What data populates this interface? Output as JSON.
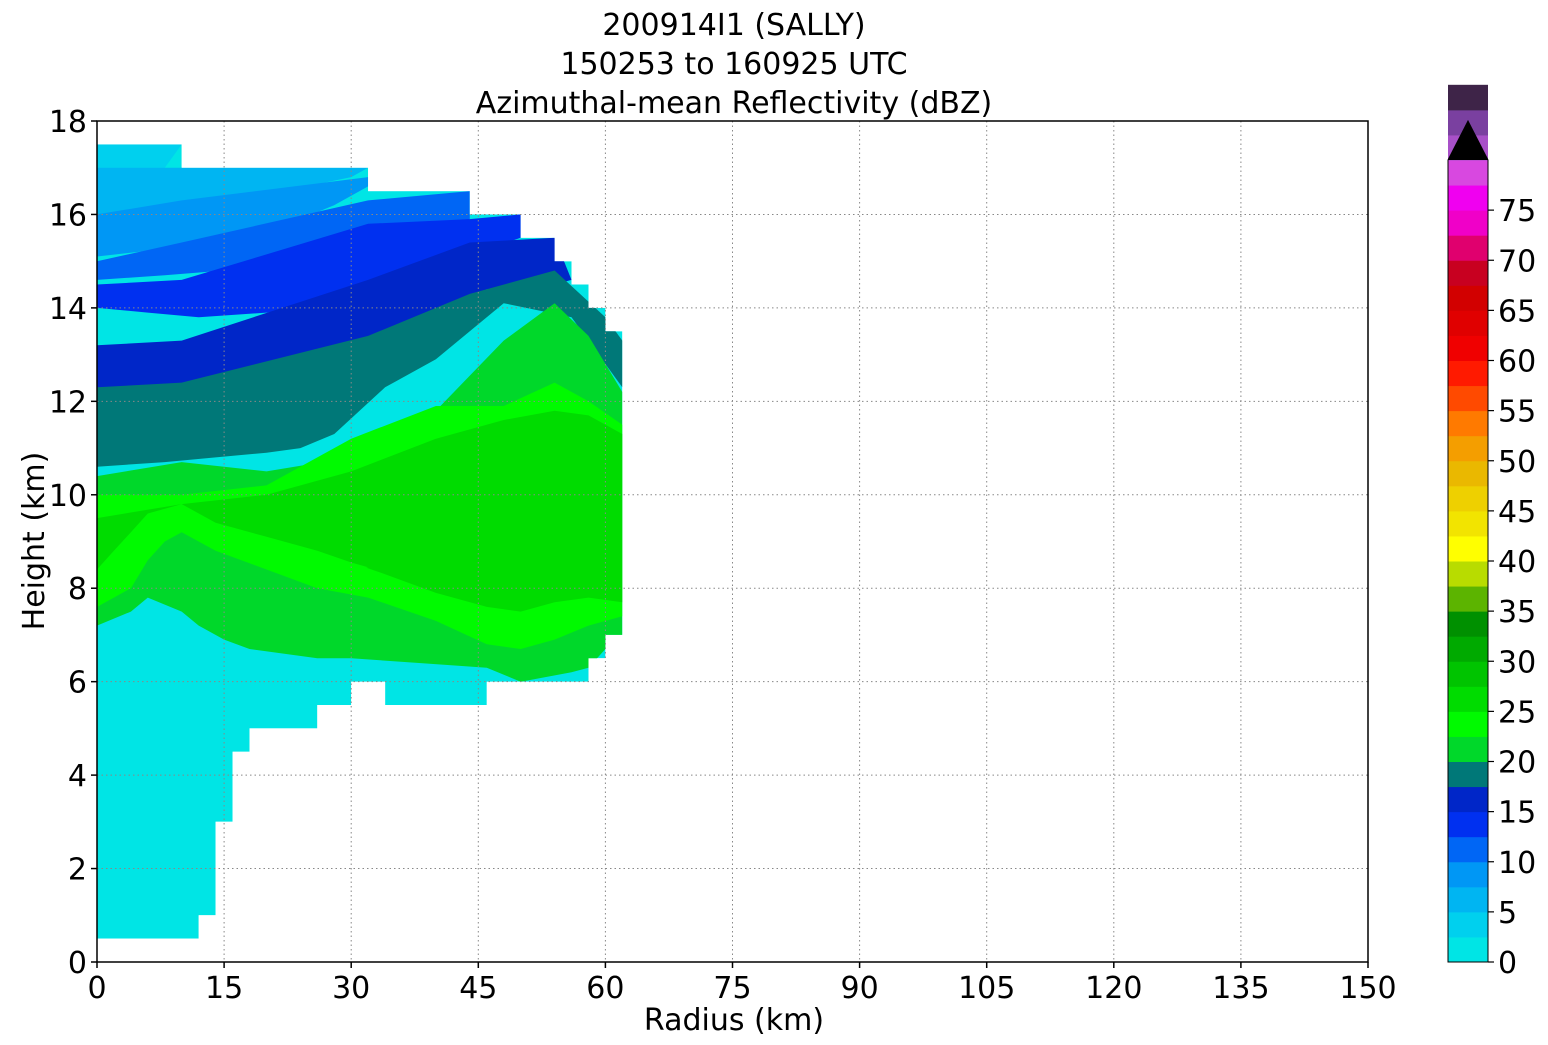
{
  "chart_data": {
    "type": "heatmap",
    "title_lines": [
      "200914I1 (SALLY)",
      "150253 to 160925 UTC",
      "Azimuthal-mean Reflectivity (dBZ)"
    ],
    "xlabel": "Radius (km)",
    "ylabel": "Height (km)",
    "xlim": [
      0,
      150
    ],
    "ylim": [
      0,
      18
    ],
    "xticks": [
      0,
      15,
      30,
      45,
      60,
      75,
      90,
      105,
      120,
      135,
      150
    ],
    "yticks": [
      0,
      2,
      4,
      6,
      8,
      10,
      12,
      14,
      16,
      18
    ],
    "grid": true,
    "colorbar": {
      "min": 0,
      "max": 80,
      "step": 2.5,
      "extend": "max",
      "extend_color": "#000000",
      "ticks": [
        0,
        5,
        10,
        15,
        20,
        25,
        30,
        35,
        40,
        45,
        50,
        55,
        60,
        65,
        70,
        75
      ],
      "colors": [
        "#00e5e5",
        "#00d0ee",
        "#00b5f2",
        "#0097f5",
        "#0066f5",
        "#0030f0",
        "#0026c8",
        "#007878",
        "#00d82a",
        "#00fa00",
        "#00dc00",
        "#00c400",
        "#00aa00",
        "#009000",
        "#5cb400",
        "#b8dc00",
        "#ffff00",
        "#f2e400",
        "#eed000",
        "#eab800",
        "#f49e00",
        "#ff7a00",
        "#ff4a00",
        "#ff1a00",
        "#f00000",
        "#e00000",
        "#d20000",
        "#c80020",
        "#e0006e",
        "#f000c8",
        "#f000f0",
        "#d848e0",
        "#a850c8",
        "#7a40a0",
        "#3e2448"
      ]
    },
    "data_envelope": {
      "radius_km": [
        0,
        10,
        10,
        32,
        32,
        44,
        44,
        50,
        50,
        54,
        54,
        56,
        56,
        58,
        58,
        60,
        60,
        62,
        62,
        60,
        60,
        58,
        58,
        46,
        46,
        34,
        34,
        30,
        30,
        26,
        26,
        18,
        18,
        16,
        16,
        14,
        14,
        12,
        12,
        0
      ],
      "height_km": [
        17.5,
        17.5,
        17,
        17,
        16.5,
        16.5,
        16,
        16,
        15.5,
        15.5,
        15,
        15,
        14.5,
        14.5,
        14,
        14,
        13.5,
        13.5,
        7,
        7,
        6.5,
        6.5,
        6,
        6,
        5.5,
        5.5,
        6,
        6,
        5.5,
        5.5,
        5,
        5,
        4.5,
        4.5,
        3,
        3,
        1,
        1,
        0.5,
        0.5
      ]
    },
    "dbz_contours": [
      {
        "dbz": 2.5,
        "radius_km": [
          0,
          10,
          8,
          4,
          0
        ],
        "height_km": [
          17.5,
          17.5,
          17,
          16.8,
          16.8
        ]
      },
      {
        "dbz": 5,
        "radius_km": [
          0,
          10,
          32,
          30,
          22,
          14,
          8,
          0
        ],
        "height_km": [
          17.0,
          17.0,
          17.0,
          16.8,
          16.5,
          16.2,
          16.0,
          15.9
        ]
      },
      {
        "dbz": 7.5,
        "radius_km": [
          0,
          10,
          32,
          32,
          28,
          20,
          10,
          0
        ],
        "height_km": [
          16.0,
          16.3,
          16.8,
          16.6,
          16.2,
          15.6,
          15.3,
          15.1
        ]
      },
      {
        "dbz": 10,
        "radius_km": [
          0,
          10,
          32,
          44,
          44,
          36,
          26,
          15,
          8,
          0
        ],
        "height_km": [
          15.0,
          15.4,
          16.3,
          16.5,
          15.9,
          15.5,
          15.0,
          14.8,
          14.7,
          14.6
        ]
      },
      {
        "dbz": 12.5,
        "radius_km": [
          0,
          10,
          32,
          44,
          50,
          50,
          42,
          34,
          28,
          20,
          12,
          6,
          0
        ],
        "height_km": [
          14.5,
          14.6,
          15.8,
          15.9,
          16.0,
          15.5,
          15.0,
          14.4,
          14.1,
          13.9,
          13.8,
          13.9,
          14.0
        ]
      },
      {
        "dbz": 15,
        "radius_km": [
          0,
          10,
          32,
          44,
          54,
          56,
          54,
          46,
          40,
          34,
          28,
          20,
          12,
          6,
          0
        ],
        "height_km": [
          13.2,
          13.3,
          14.6,
          15.4,
          15.5,
          14.6,
          14.5,
          14.4,
          13.8,
          13.3,
          12.6,
          12.4,
          12.2,
          12.1,
          12.2
        ]
      },
      {
        "dbz": 17.5,
        "radius_km": [
          0,
          10,
          32,
          44,
          54,
          60,
          62,
          62,
          60,
          56,
          48,
          40,
          34,
          28,
          24,
          20,
          14,
          8,
          0
        ],
        "height_km": [
          12.3,
          12.4,
          13.4,
          14.3,
          14.8,
          13.8,
          13.3,
          12.3,
          12.8,
          13.8,
          14.1,
          12.9,
          12.3,
          11.3,
          11.0,
          10.9,
          10.8,
          10.7,
          10.6
        ]
      },
      {
        "dbz": 20,
        "radius_km": [
          0,
          10,
          20,
          30,
          40,
          48,
          54,
          58,
          62,
          62,
          60,
          58,
          56,
          50,
          46,
          38,
          30,
          26,
          22,
          18,
          15,
          12,
          10,
          6,
          4,
          0
        ],
        "height_km": [
          10.4,
          10.7,
          10.5,
          10.8,
          11.8,
          13.3,
          14.1,
          13.4,
          12.2,
          7.0,
          6.7,
          6.3,
          6.2,
          6.0,
          6.3,
          6.4,
          6.5,
          6.5,
          6.6,
          6.7,
          6.9,
          7.2,
          7.5,
          7.8,
          7.5,
          7.2
        ]
      },
      {
        "dbz": 22.5,
        "radius_km": [
          0,
          10,
          20,
          30,
          40,
          48,
          54,
          58,
          62,
          62,
          58,
          54,
          50,
          46,
          40,
          32,
          26,
          20,
          14,
          10,
          8,
          6,
          4,
          2,
          0
        ],
        "height_km": [
          10.0,
          10.0,
          10.2,
          11.2,
          11.9,
          11.9,
          12.4,
          12.0,
          11.5,
          7.4,
          7.2,
          6.9,
          6.7,
          6.8,
          7.3,
          7.8,
          8.0,
          8.4,
          8.8,
          9.2,
          9.0,
          8.6,
          8.0,
          7.8,
          7.6
        ]
      },
      {
        "dbz": 25,
        "radius_km": [
          0,
          10,
          20,
          30,
          40,
          48,
          54,
          58,
          62,
          62,
          58,
          54,
          50,
          46,
          40,
          34,
          26,
          20,
          14,
          10,
          6,
          4,
          2,
          0
        ],
        "height_km": [
          9.5,
          9.8,
          10.0,
          10.5,
          11.2,
          11.6,
          11.8,
          11.7,
          11.3,
          7.7,
          7.8,
          7.7,
          7.5,
          7.6,
          7.9,
          8.3,
          8.8,
          9.1,
          9.4,
          9.8,
          9.6,
          9.2,
          8.8,
          8.4
        ]
      }
    ],
    "note_marks": [
      {
        "dbz": 22.5,
        "radius_km": [
          28,
          30,
          32,
          30,
          28
        ],
        "height_km": [
          8.45,
          8.55,
          8.45,
          8.35,
          8.45
        ]
      }
    ]
  }
}
